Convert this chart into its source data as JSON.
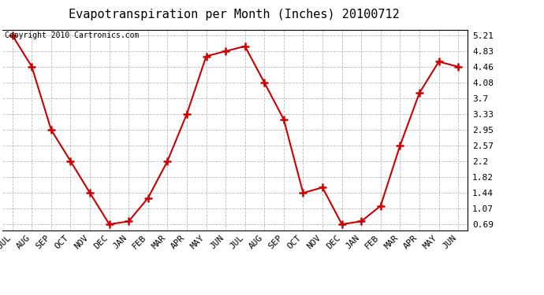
{
  "title": "Evapotranspiration per Month (Inches) 20100712",
  "copyright": "Copyright 2010 Cartronics.com",
  "x_labels": [
    "JUL",
    "AUG",
    "SEP",
    "OCT",
    "NOV",
    "DEC",
    "JAN",
    "FEB",
    "MAR",
    "APR",
    "MAY",
    "JUN",
    "JUL",
    "AUG",
    "SEP",
    "OCT",
    "NOV",
    "DEC",
    "JAN",
    "FEB",
    "MAR",
    "APR",
    "MAY",
    "JUN"
  ],
  "y_values": [
    5.21,
    4.46,
    2.95,
    2.2,
    1.44,
    0.69,
    0.76,
    1.32,
    2.2,
    3.33,
    4.71,
    4.83,
    4.95,
    4.08,
    3.2,
    1.44,
    1.57,
    0.69,
    0.76,
    1.13,
    2.57,
    3.83,
    4.58,
    4.46
  ],
  "y_ticks": [
    0.69,
    1.07,
    1.44,
    1.82,
    2.2,
    2.57,
    2.95,
    3.33,
    3.7,
    4.08,
    4.46,
    4.83,
    5.21
  ],
  "line_color": "#cc0000",
  "marker": "+",
  "marker_color": "#cc0000",
  "bg_color": "#ffffff",
  "plot_bg_color": "#ffffff",
  "grid_color": "#bbbbbb",
  "title_fontsize": 11,
  "tick_fontsize": 8,
  "copyright_fontsize": 7,
  "ylim_min": 0.55,
  "ylim_max": 5.35
}
